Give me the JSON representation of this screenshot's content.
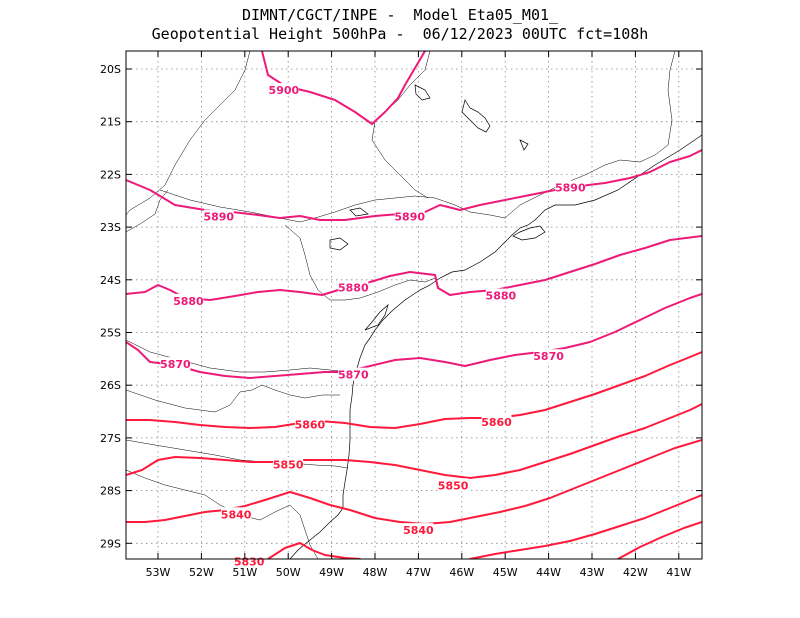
{
  "header": {
    "line1": "DIMNT/CGCT/INPE -  Model Eta05_M01_",
    "line2": "Geopotential Height 500hPa -  06/12/2023 00UTC fct=108h"
  },
  "axes": {
    "lon_ticks": [
      "53W",
      "52W",
      "51W",
      "50W",
      "49W",
      "48W",
      "47W",
      "46W",
      "45W",
      "44W",
      "43W",
      "42W",
      "41W"
    ],
    "lat_ticks": [
      "20S",
      "21S",
      "22S",
      "23S",
      "24S",
      "25S",
      "26S",
      "27S",
      "28S",
      "29S"
    ]
  },
  "colors": {
    "contour_low": "#ff1a3c",
    "contour_high": "#ee1a78",
    "coast": "#000000",
    "grid": "#888888"
  },
  "chart_data": {
    "type": "contour",
    "variable": "Geopotential Height 500hPa",
    "contour_levels": [
      5830,
      5840,
      5850,
      5860,
      5870,
      5880,
      5890,
      5900
    ],
    "contour_labels": [
      {
        "level": "5900",
        "lon": -50.1,
        "lat": -20.4
      },
      {
        "level": "5890",
        "lon": -51.6,
        "lat": -22.8
      },
      {
        "level": "5890",
        "lon": -47.2,
        "lat": -22.8
      },
      {
        "level": "5890",
        "lon": -43.5,
        "lat": -22.25
      },
      {
        "level": "5880",
        "lon": -52.3,
        "lat": -24.4
      },
      {
        "level": "5880",
        "lon": -48.5,
        "lat": -24.15
      },
      {
        "level": "5880",
        "lon": -45.1,
        "lat": -24.3
      },
      {
        "level": "5870",
        "lon": -52.6,
        "lat": -25.6
      },
      {
        "level": "5870",
        "lon": -48.5,
        "lat": -25.8
      },
      {
        "level": "5870",
        "lon": -44.0,
        "lat": -25.45
      },
      {
        "level": "5860",
        "lon": -49.5,
        "lat": -26.75
      },
      {
        "level": "5860",
        "lon": -45.2,
        "lat": -26.7
      },
      {
        "level": "5850",
        "lon": -50.0,
        "lat": -27.5
      },
      {
        "level": "5850",
        "lon": -46.2,
        "lat": -27.9
      },
      {
        "level": "5840",
        "lon": -51.2,
        "lat": -28.45
      },
      {
        "level": "5840",
        "lon": -47.0,
        "lat": -28.75
      },
      {
        "level": "5830",
        "lon": -50.9,
        "lat": -29.35
      }
    ]
  }
}
